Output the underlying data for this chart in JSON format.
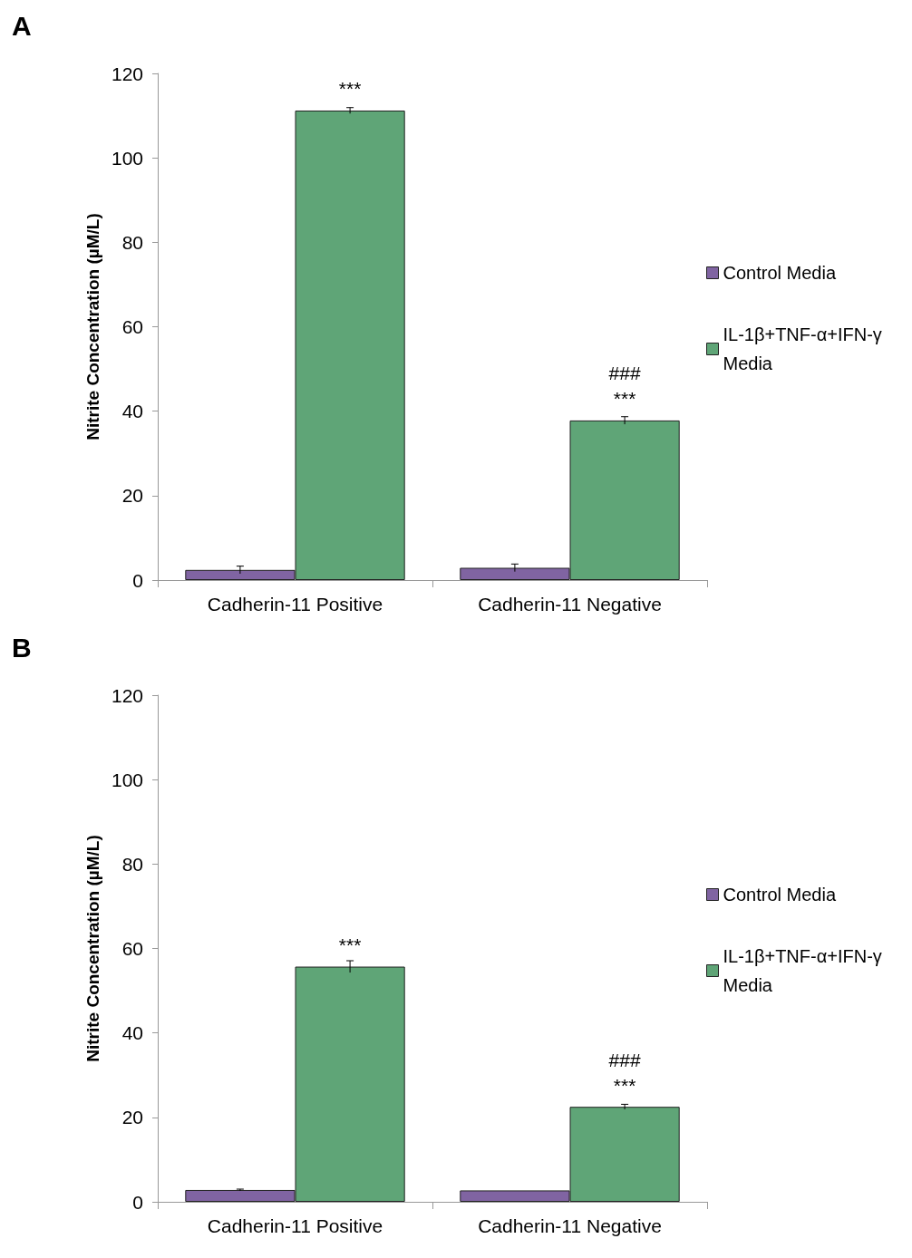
{
  "chart_data": [
    {
      "type": "bar",
      "title": "A",
      "ylabel": "Nitrite Concentration (µM/L)",
      "categories": [
        "Cadherin-11 Positive",
        "Cadherin-11 Negative"
      ],
      "series": [
        {
          "name": "Control Media",
          "color": "#8064a2",
          "values": [
            2.4,
            2.9
          ],
          "errors": [
            0.9,
            0.9
          ]
        },
        {
          "name": "IL-1β+TNF-α+IFN-γ Media",
          "color": "#5fa577",
          "values": [
            111.2,
            37.8
          ],
          "errors": [
            0.7,
            0.9
          ]
        }
      ],
      "ylim": [
        0,
        120
      ],
      "yticks": [
        0,
        20,
        40,
        60,
        80,
        100,
        120
      ],
      "grid": false,
      "legend": "right",
      "annotations": [
        {
          "text": "***",
          "x": "Cadherin-11 Positive",
          "y": 111.2
        },
        {
          "text": "***",
          "x": "Cadherin-11 Negative",
          "y": 37.8
        },
        {
          "text": "###",
          "x": "Cadherin-11 Negative",
          "y": 37.8
        }
      ]
    },
    {
      "type": "bar",
      "title": "B",
      "ylabel": "Nitrite Concentration (µM/L)",
      "categories": [
        "Cadherin-11 Positive",
        "Cadherin-11 Negative"
      ],
      "series": [
        {
          "name": "Control Media",
          "color": "#8064a2",
          "values": [
            2.8,
            2.7
          ],
          "errors": [
            0.2,
            null
          ]
        },
        {
          "name": "IL-1β+TNF-α+IFN-γ Media",
          "color": "#5fa577",
          "values": [
            55.7,
            22.5
          ],
          "errors": [
            1.4,
            0.6
          ]
        }
      ],
      "ylim": [
        0,
        120
      ],
      "yticks": [
        0,
        20,
        40,
        60,
        80,
        100,
        120
      ],
      "grid": false,
      "legend": "right",
      "annotations": [
        {
          "text": "***",
          "x": "Cadherin-11 Positive",
          "y": 55.7
        },
        {
          "text": "***",
          "x": "Cadherin-11 Negative",
          "y": 22.5
        },
        {
          "text": "###",
          "x": "Cadherin-11 Negative",
          "y": 22.5
        }
      ]
    }
  ]
}
